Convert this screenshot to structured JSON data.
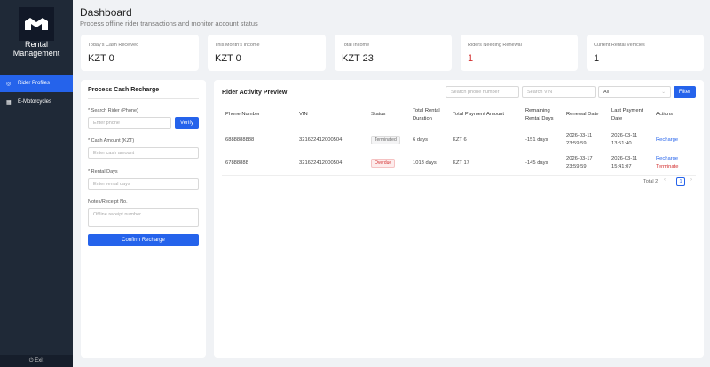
{
  "sidebar": {
    "brand": "Rental Management",
    "menu": [
      "Rider Profiles",
      "E-Motorcycles"
    ],
    "exit": "Exit"
  },
  "header": {
    "title": "Dashboard",
    "subtitle": "Process offline rider transactions and monitor account status"
  },
  "stats": [
    {
      "label": "Today's Cash Received",
      "value": "KZT 0"
    },
    {
      "label": "This Month's Income",
      "value": "KZT 0"
    },
    {
      "label": "Total Income",
      "value": "KZT 23"
    },
    {
      "label": "Riders Needing Renewal",
      "value": "1"
    },
    {
      "label": "Current Rental Vehicles",
      "value": "1"
    }
  ],
  "recharge_form": {
    "title": "Process Cash Recharge",
    "phone_label": "* Search Rider (Phone)",
    "phone_placeholder": "Enter phone",
    "verify": "Verify",
    "amount_label": "* Cash Amount (KZT)",
    "amount_placeholder": "Enter cash amount",
    "days_label": "* Rental Days",
    "days_placeholder": "Enter rental days",
    "notes_label": "Notes/Receipt No.",
    "notes_placeholder": "Offline receipt number...",
    "submit": "Confirm Recharge"
  },
  "activity": {
    "title": "Rider Activity Preview",
    "phone_placeholder": "Search phone number",
    "vin_placeholder": "Search VIN",
    "status_filter": "All",
    "filter_button": "Filter",
    "columns": [
      "Phone Number",
      "VIN",
      "Status",
      "Total Rental Duration",
      "Total Payment Amount",
      "Remaining Rental Days",
      "Renewal Date",
      "Last Payment Date",
      "Actions"
    ],
    "rows": [
      [
        "6888888888",
        "321622412000504",
        "Terminated",
        "6 days",
        "KZT 6",
        "-151 days",
        "2026-03-11 23:59:59",
        "2026-03-11 13:51:40",
        [
          "Recharge"
        ]
      ],
      [
        "67888888",
        "321622412000504",
        "Overdue",
        "1013 days",
        "KZT 17",
        "-145 days",
        "2026-03-17 23:59:59",
        "2026-03-11 15:41:07",
        [
          "Recharge",
          "Terminate"
        ]
      ]
    ],
    "pagination": {
      "total": "Total 2",
      "page": "1"
    }
  }
}
